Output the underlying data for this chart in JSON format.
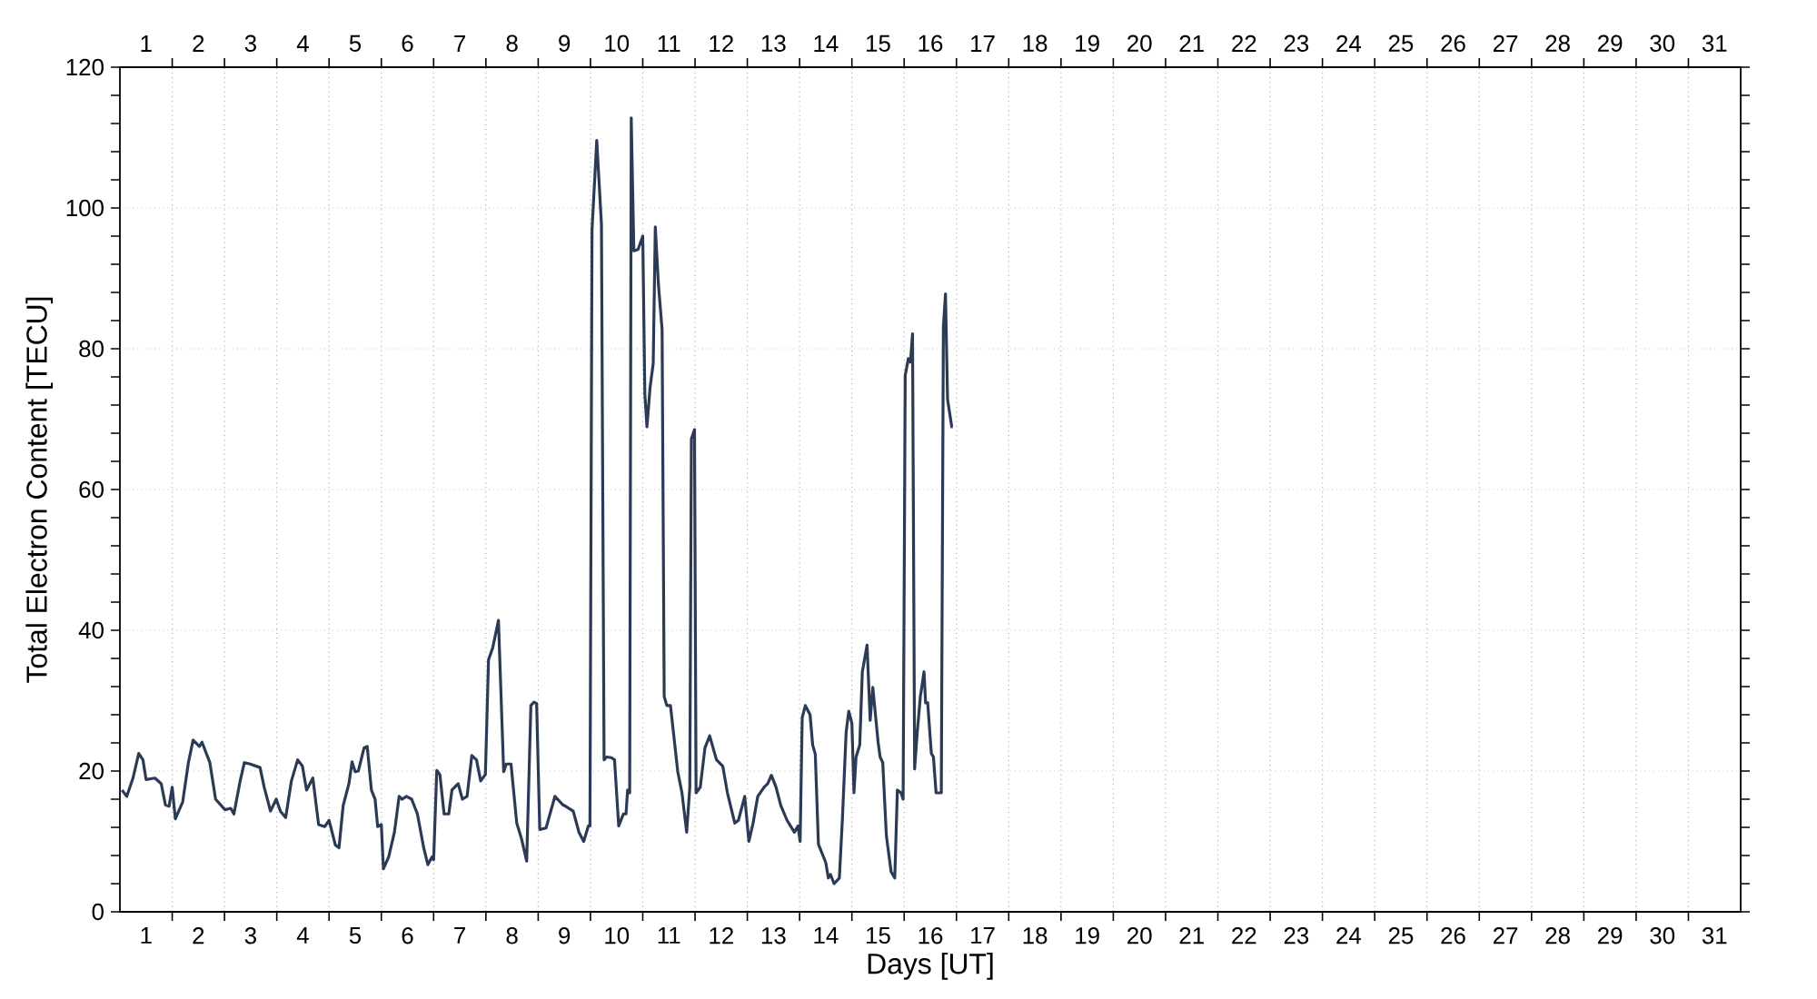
{
  "chart_data": {
    "type": "line",
    "xlabel": "Days [UT]",
    "ylabel": "Total Electron Content [TECU]",
    "color": "#2b3a55",
    "grid": true,
    "xlim": [
      1,
      32
    ],
    "ylim": [
      0,
      120
    ],
    "xticks": [
      {
        "value": 1.5,
        "label": "1"
      },
      {
        "value": 2.5,
        "label": "2"
      },
      {
        "value": 3.5,
        "label": "3"
      },
      {
        "value": 4.5,
        "label": "4"
      },
      {
        "value": 5.5,
        "label": "5"
      },
      {
        "value": 6.5,
        "label": "6"
      },
      {
        "value": 7.5,
        "label": "7"
      },
      {
        "value": 8.5,
        "label": "8"
      },
      {
        "value": 9.5,
        "label": "9"
      },
      {
        "value": 10.5,
        "label": "10"
      },
      {
        "value": 11.5,
        "label": "11"
      },
      {
        "value": 12.5,
        "label": "12"
      },
      {
        "value": 13.5,
        "label": "13"
      },
      {
        "value": 14.5,
        "label": "14"
      },
      {
        "value": 15.5,
        "label": "15"
      },
      {
        "value": 16.5,
        "label": "16"
      },
      {
        "value": 17.5,
        "label": "17"
      },
      {
        "value": 18.5,
        "label": "18"
      },
      {
        "value": 19.5,
        "label": "19"
      },
      {
        "value": 20.5,
        "label": "20"
      },
      {
        "value": 21.5,
        "label": "21"
      },
      {
        "value": 22.5,
        "label": "22"
      },
      {
        "value": 23.5,
        "label": "23"
      },
      {
        "value": 24.5,
        "label": "24"
      },
      {
        "value": 25.5,
        "label": "25"
      },
      {
        "value": 26.5,
        "label": "26"
      },
      {
        "value": 27.5,
        "label": "27"
      },
      {
        "value": 28.5,
        "label": "28"
      },
      {
        "value": 29.5,
        "label": "29"
      },
      {
        "value": 30.5,
        "label": "30"
      },
      {
        "value": 31.5,
        "label": "31"
      },
      {
        "value": 2,
        "label": null
      },
      {
        "value": 3,
        "label": null
      },
      {
        "value": 4,
        "label": null
      },
      {
        "value": 5,
        "label": null
      },
      {
        "value": 6,
        "label": null
      },
      {
        "value": 7,
        "label": null
      },
      {
        "value": 8,
        "label": null
      },
      {
        "value": 9,
        "label": null
      },
      {
        "value": 10,
        "label": null
      },
      {
        "value": 11,
        "label": null
      },
      {
        "value": 12,
        "label": null
      },
      {
        "value": 13,
        "label": null
      },
      {
        "value": 14,
        "label": null
      },
      {
        "value": 15,
        "label": null
      },
      {
        "value": 16,
        "label": null
      },
      {
        "value": 17,
        "label": null
      },
      {
        "value": 18,
        "label": null
      },
      {
        "value": 19,
        "label": null
      },
      {
        "value": 20,
        "label": null
      },
      {
        "value": 21,
        "label": null
      },
      {
        "value": 22,
        "label": null
      },
      {
        "value": 23,
        "label": null
      },
      {
        "value": 24,
        "label": null
      },
      {
        "value": 25,
        "label": null
      },
      {
        "value": 26,
        "label": null
      },
      {
        "value": 27,
        "label": null
      },
      {
        "value": 28,
        "label": null
      },
      {
        "value": 29,
        "label": null
      },
      {
        "value": 30,
        "label": null
      },
      {
        "value": 31,
        "label": null
      }
    ],
    "x2lim": [
      1,
      32
    ],
    "x2ticks": [
      {
        "value": 1.5,
        "label": "1"
      },
      {
        "value": 2.5,
        "label": "2"
      },
      {
        "value": 3.5,
        "label": "3"
      },
      {
        "value": 4.5,
        "label": "4"
      },
      {
        "value": 5.5,
        "label": "5"
      },
      {
        "value": 6.5,
        "label": "6"
      },
      {
        "value": 7.5,
        "label": "7"
      },
      {
        "value": 8.5,
        "label": "8"
      },
      {
        "value": 9.5,
        "label": "9"
      },
      {
        "value": 10.5,
        "label": "10"
      },
      {
        "value": 11.5,
        "label": "11"
      },
      {
        "value": 12.5,
        "label": "12"
      },
      {
        "value": 13.5,
        "label": "13"
      },
      {
        "value": 14.5,
        "label": "14"
      },
      {
        "value": 15.5,
        "label": "15"
      },
      {
        "value": 16.5,
        "label": "16"
      },
      {
        "value": 17.5,
        "label": "17"
      },
      {
        "value": 18.5,
        "label": "18"
      },
      {
        "value": 19.5,
        "label": "19"
      },
      {
        "value": 20.5,
        "label": "20"
      },
      {
        "value": 21.5,
        "label": "21"
      },
      {
        "value": 22.5,
        "label": "22"
      },
      {
        "value": 23.5,
        "label": "23"
      },
      {
        "value": 24.5,
        "label": "24"
      },
      {
        "value": 25.5,
        "label": "25"
      },
      {
        "value": 26.5,
        "label": "26"
      },
      {
        "value": 27.5,
        "label": "27"
      },
      {
        "value": 28.5,
        "label": "28"
      },
      {
        "value": 29.5,
        "label": "29"
      },
      {
        "value": 30.5,
        "label": "30"
      },
      {
        "value": 31.5,
        "label": "31"
      },
      {
        "value": 2,
        "label": null
      },
      {
        "value": 3,
        "label": null
      },
      {
        "value": 4,
        "label": null
      },
      {
        "value": 5,
        "label": null
      },
      {
        "value": 6,
        "label": null
      },
      {
        "value": 7,
        "label": null
      },
      {
        "value": 8,
        "label": null
      },
      {
        "value": 9,
        "label": null
      },
      {
        "value": 10,
        "label": null
      },
      {
        "value": 11,
        "label": null
      },
      {
        "value": 12,
        "label": null
      },
      {
        "value": 13,
        "label": null
      },
      {
        "value": 14,
        "label": null
      },
      {
        "value": 15,
        "label": null
      },
      {
        "value": 16,
        "label": null
      },
      {
        "value": 17,
        "label": null
      },
      {
        "value": 18,
        "label": null
      },
      {
        "value": 19,
        "label": null
      },
      {
        "value": 20,
        "label": null
      },
      {
        "value": 21,
        "label": null
      },
      {
        "value": 22,
        "label": null
      },
      {
        "value": 23,
        "label": null
      },
      {
        "value": 24,
        "label": null
      },
      {
        "value": 25,
        "label": null
      },
      {
        "value": 26,
        "label": null
      },
      {
        "value": 27,
        "label": null
      },
      {
        "value": 28,
        "label": null
      },
      {
        "value": 29,
        "label": null
      },
      {
        "value": 30,
        "label": null
      },
      {
        "value": 31,
        "label": null
      }
    ],
    "yticks": [
      0,
      20,
      40,
      60,
      80,
      100,
      120,
      {
        "value": 4,
        "label": null
      },
      {
        "value": 8,
        "label": null
      },
      {
        "value": 12,
        "label": null
      },
      {
        "value": 16,
        "label": null
      },
      {
        "value": 24,
        "label": null
      },
      {
        "value": 28,
        "label": null
      },
      {
        "value": 32,
        "label": null
      },
      {
        "value": 36,
        "label": null
      },
      {
        "value": 44,
        "label": null
      },
      {
        "value": 48,
        "label": null
      },
      {
        "value": 52,
        "label": null
      },
      {
        "value": 56,
        "label": null
      },
      {
        "value": 64,
        "label": null
      },
      {
        "value": 68,
        "label": null
      },
      {
        "value": 72,
        "label": null
      },
      {
        "value": 76,
        "label": null
      },
      {
        "value": 84,
        "label": null
      },
      {
        "value": 88,
        "label": null
      },
      {
        "value": 92,
        "label": null
      },
      {
        "value": 96,
        "label": null
      },
      {
        "value": 104,
        "label": null
      },
      {
        "value": 108,
        "label": null
      },
      {
        "value": 112,
        "label": null
      },
      {
        "value": 116,
        "label": null
      }
    ],
    "x": [
      1.04,
      1.13,
      1.25,
      1.36,
      1.44,
      1.5,
      1.67,
      1.79,
      1.87,
      1.94,
      2.0,
      2.06,
      2.2,
      2.31,
      2.4,
      2.52,
      2.57,
      2.72,
      2.83,
      3.01,
      3.12,
      3.18,
      3.3,
      3.38,
      3.49,
      3.68,
      3.76,
      3.88,
      3.99,
      4.07,
      4.17,
      4.28,
      4.4,
      4.49,
      4.57,
      4.69,
      4.8,
      4.92,
      5.0,
      5.12,
      5.19,
      5.27,
      5.38,
      5.44,
      5.5,
      5.56,
      5.67,
      5.73,
      5.81,
      5.88,
      5.93,
      6.0,
      6.04,
      6.14,
      6.25,
      6.34,
      6.4,
      6.48,
      6.58,
      6.69,
      6.81,
      6.89,
      6.97,
      7.0,
      7.06,
      7.12,
      7.2,
      7.29,
      7.35,
      7.47,
      7.55,
      7.64,
      7.73,
      7.82,
      7.9,
      7.99,
      8.05,
      8.13,
      8.24,
      8.34,
      8.39,
      8.48,
      8.59,
      8.68,
      8.78,
      8.86,
      8.92,
      8.97,
      9.03,
      9.15,
      9.32,
      9.47,
      9.5,
      9.67,
      9.78,
      9.87,
      9.96,
      9.99,
      10.03,
      10.12,
      10.21,
      10.26,
      10.31,
      10.4,
      10.46,
      10.54,
      10.63,
      10.68,
      10.71,
      10.75,
      10.78,
      10.83,
      10.91,
      11.0,
      11.04,
      11.08,
      11.14,
      11.2,
      11.24,
      11.3,
      11.37,
      11.41,
      11.46,
      11.53,
      11.67,
      11.75,
      11.84,
      11.9,
      11.93,
      11.99,
      12.02,
      12.1,
      12.19,
      12.28,
      12.33,
      12.41,
      12.53,
      12.62,
      12.76,
      12.83,
      12.95,
      13.03,
      13.11,
      13.2,
      13.32,
      13.39,
      13.46,
      13.55,
      13.64,
      13.76,
      13.9,
      13.97,
      14.01,
      14.05,
      14.11,
      14.2,
      14.25,
      14.3,
      14.36,
      14.43,
      14.5,
      14.55,
      14.59,
      14.66,
      14.76,
      14.82,
      14.89,
      14.94,
      15.0,
      15.04,
      15.08,
      15.15,
      15.2,
      15.29,
      15.35,
      15.4,
      15.5,
      15.54,
      15.59,
      15.66,
      15.75,
      15.82,
      15.87,
      15.94,
      15.98,
      16.02,
      16.08,
      16.12,
      16.16,
      16.2,
      16.25,
      16.31,
      16.38,
      16.41,
      16.45,
      16.52,
      16.56,
      16.61,
      16.66,
      16.71,
      16.75,
      16.79,
      16.83,
      16.91,
      16.93
    ],
    "values": [
      17.3,
      16.4,
      19.0,
      22.5,
      21.6,
      18.8,
      19.0,
      18.2,
      15.2,
      15.0,
      17.7,
      13.2,
      15.6,
      21.2,
      24.4,
      23.5,
      24.1,
      21.2,
      16.0,
      14.5,
      14.7,
      13.9,
      18.6,
      21.2,
      21.0,
      20.5,
      17.7,
      14.3,
      16.0,
      14.3,
      13.4,
      18.6,
      21.6,
      20.7,
      17.3,
      19.0,
      12.4,
      12.1,
      13.0,
      9.5,
      9.1,
      15.1,
      18.2,
      21.3,
      19.9,
      20.0,
      23.3,
      23.5,
      17.3,
      16.0,
      12.1,
      12.4,
      6.1,
      7.8,
      11.3,
      16.4,
      16.0,
      16.4,
      16.0,
      13.9,
      9.1,
      6.7,
      7.8,
      7.4,
      20.1,
      19.5,
      13.9,
      13.9,
      17.3,
      18.2,
      16.0,
      16.4,
      22.2,
      21.6,
      18.6,
      19.5,
      35.8,
      37.5,
      41.4,
      19.9,
      21.0,
      21.0,
      12.6,
      10.4,
      7.2,
      29.3,
      29.8,
      29.6,
      11.7,
      11.9,
      16.4,
      15.2,
      15.1,
      14.3,
      11.3,
      10.0,
      12.2,
      12.2,
      96.9,
      109.6,
      97.7,
      21.6,
      22.0,
      21.9,
      21.6,
      12.2,
      13.9,
      13.9,
      17.3,
      16.9,
      112.8,
      93.9,
      94.1,
      96.0,
      73.6,
      68.9,
      74.5,
      77.9,
      97.3,
      89.1,
      82.7,
      30.6,
      29.3,
      29.3,
      19.9,
      16.9,
      11.3,
      17.7,
      67.2,
      68.5,
      16.9,
      17.7,
      23.3,
      25.0,
      23.7,
      21.6,
      20.7,
      16.9,
      12.6,
      13.0,
      16.4,
      10.0,
      12.6,
      16.4,
      17.7,
      18.2,
      19.4,
      17.7,
      15.1,
      13.0,
      11.3,
      12.2,
      10.0,
      27.6,
      29.3,
      28.0,
      23.7,
      22.4,
      9.6,
      8.3,
      7.0,
      4.8,
      5.3,
      4.0,
      4.8,
      13.4,
      25.5,
      28.5,
      26.8,
      16.9,
      22.0,
      23.7,
      34.1,
      37.9,
      27.2,
      31.9,
      24.2,
      22.0,
      21.2,
      10.8,
      5.7,
      4.8,
      17.3,
      16.9,
      16.0,
      76.2,
      78.6,
      78.1,
      82.1,
      20.3,
      25.5,
      30.6,
      34.1,
      29.7,
      29.7,
      22.5,
      22.0,
      16.9,
      16.9,
      16.9,
      83.1,
      87.8,
      72.8,
      68.9,
      68.9
    ]
  }
}
